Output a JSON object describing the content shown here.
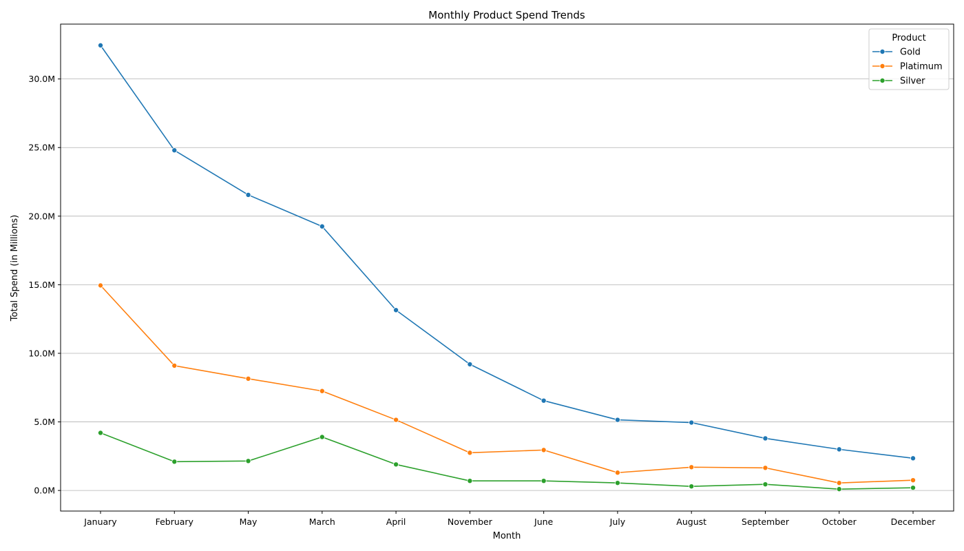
{
  "chart_data": {
    "type": "line",
    "title": "Monthly Product Spend Trends",
    "xlabel": "Month",
    "ylabel": "Total Spend (in Millions)",
    "categories": [
      "January",
      "February",
      "May",
      "March",
      "April",
      "November",
      "June",
      "July",
      "August",
      "September",
      "October",
      "December"
    ],
    "ylim": [
      -1.5,
      34.0
    ],
    "yticks": [
      0,
      5,
      10,
      15,
      20,
      25,
      30
    ],
    "ytick_labels": [
      "0.0M",
      "5.0M",
      "10.0M",
      "15.0M",
      "20.0M",
      "25.0M",
      "30.0M"
    ],
    "grid": "horizontal",
    "legend": {
      "title": "Product",
      "placement": "top-right"
    },
    "series": [
      {
        "name": "Gold",
        "color": "#1f77b4",
        "marker": "circle",
        "values": [
          32.45,
          24.8,
          21.55,
          19.25,
          13.15,
          9.2,
          6.55,
          5.15,
          4.95,
          3.8,
          3.0,
          2.35
        ]
      },
      {
        "name": "Platimum",
        "color": "#ff7f0e",
        "marker": "circle",
        "values": [
          14.95,
          9.1,
          8.15,
          7.25,
          5.15,
          2.75,
          2.95,
          1.3,
          1.7,
          1.65,
          0.55,
          0.75
        ]
      },
      {
        "name": "Silver",
        "color": "#2ca02c",
        "marker": "circle",
        "values": [
          4.2,
          2.1,
          2.15,
          3.9,
          1.9,
          0.7,
          0.7,
          0.55,
          0.3,
          0.45,
          0.1,
          0.2
        ]
      }
    ]
  }
}
